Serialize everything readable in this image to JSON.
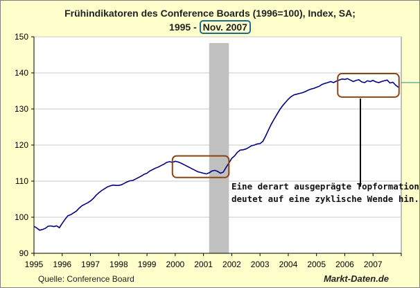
{
  "title": {
    "line1": "Frühindikatoren des Conference Boards (1996=100), Index, SA;",
    "line2_prefix": "1995 - ",
    "line2_highlight": "Nov. 2007"
  },
  "annotation": {
    "line1": "Eine derart ausgeprägte Topformation",
    "line2": "deutet auf eine zyklische Wende hin."
  },
  "footer": {
    "source": "Quelle: Conference Board",
    "brand": "Markt-Daten.de"
  },
  "colors": {
    "background": "#FFFFCC",
    "plot_area": "#FFFFFF",
    "line": "#000080",
    "recession_band": "#C0C0C0",
    "highlight_box": "#8B4513",
    "title_box": "#1A6D8C"
  },
  "chart_data": {
    "type": "line",
    "title": "Frühindikatoren des Conference Boards (1996=100), Index, SA; 1995 - Nov. 2007",
    "xlabel": "",
    "ylabel": "",
    "x_ticks": [
      "1995",
      "1996",
      "1997",
      "1998",
      "1999",
      "2000",
      "2001",
      "2002",
      "2003",
      "2004",
      "2005",
      "2006",
      "2007"
    ],
    "y_ticks": [
      90,
      100,
      110,
      120,
      130,
      140,
      150
    ],
    "xlim": [
      1995.0,
      2008.0
    ],
    "ylim": [
      90,
      150
    ],
    "grid": "horizontal",
    "recession_shading": [
      2001.2,
      2001.9
    ],
    "highlights": [
      {
        "x": [
          1999.9,
          2001.9
        ],
        "y": [
          111,
          117
        ]
      },
      {
        "x": [
          2005.75,
          2007.92
        ],
        "y": [
          133.3,
          139.8
        ]
      }
    ],
    "series": [
      {
        "values_x": [
          1995.0,
          1995.1,
          1995.2,
          1995.3,
          1995.4,
          1995.5,
          1995.6,
          1995.7,
          1995.8,
          1995.9,
          1996.0,
          1996.1,
          1996.2,
          1996.3,
          1996.4,
          1996.5,
          1996.6,
          1996.7,
          1996.8,
          1996.9,
          1997.0,
          1997.1,
          1997.2,
          1997.3,
          1997.4,
          1997.5,
          1997.6,
          1997.7,
          1997.8,
          1997.9,
          1998.0,
          1998.1,
          1998.2,
          1998.3,
          1998.4,
          1998.5,
          1998.6,
          1998.7,
          1998.8,
          1998.9,
          1999.0,
          1999.1,
          1999.2,
          1999.3,
          1999.4,
          1999.5,
          1999.6,
          1999.7,
          1999.8,
          1999.9,
          2000.0,
          2000.1,
          2000.2,
          2000.3,
          2000.4,
          2000.5,
          2000.6,
          2000.7,
          2000.8,
          2000.9,
          2001.0,
          2001.1,
          2001.2,
          2001.3,
          2001.4,
          2001.5,
          2001.6,
          2001.7,
          2001.8,
          2001.9,
          2002.0,
          2002.1,
          2002.2,
          2002.3,
          2002.4,
          2002.5,
          2002.6,
          2002.7,
          2002.8,
          2002.9,
          2003.0,
          2003.1,
          2003.2,
          2003.3,
          2003.4,
          2003.5,
          2003.6,
          2003.7,
          2003.8,
          2003.9,
          2004.0,
          2004.1,
          2004.2,
          2004.3,
          2004.4,
          2004.5,
          2004.6,
          2004.7,
          2004.8,
          2004.9,
          2005.0,
          2005.1,
          2005.2,
          2005.3,
          2005.4,
          2005.5,
          2005.6,
          2005.7,
          2005.8,
          2005.9,
          2006.0,
          2006.1,
          2006.2,
          2006.3,
          2006.4,
          2006.5,
          2006.6,
          2006.7,
          2006.8,
          2006.9,
          2007.0,
          2007.1,
          2007.2,
          2007.3,
          2007.4,
          2007.5,
          2007.6,
          2007.7,
          2007.8,
          2007.9
        ],
        "values": [
          97.5,
          97.0,
          96.4,
          96.6,
          96.9,
          97.5,
          97.6,
          97.4,
          97.6,
          97.1,
          98.3,
          99.4,
          100.4,
          100.7,
          101.2,
          101.7,
          102.5,
          103.2,
          103.6,
          104.0,
          104.5,
          105.2,
          106.1,
          106.8,
          107.4,
          107.9,
          108.4,
          108.7,
          108.9,
          108.8,
          108.8,
          109.0,
          109.4,
          109.8,
          110.1,
          110.2,
          110.6,
          111.0,
          111.4,
          111.9,
          112.2,
          112.8,
          113.2,
          113.6,
          113.9,
          114.3,
          114.7,
          115.2,
          115.4,
          115.2,
          115.5,
          115.3,
          115.0,
          114.6,
          114.2,
          113.8,
          113.4,
          113.0,
          112.6,
          112.4,
          112.2,
          112.0,
          112.3,
          112.8,
          113.0,
          112.7,
          112.2,
          112.5,
          113.8,
          115.0,
          116.3,
          117.0,
          118.0,
          118.6,
          118.7,
          118.9,
          119.3,
          119.8,
          120.0,
          120.3,
          120.4,
          121.0,
          122.5,
          124.2,
          125.8,
          127.2,
          128.5,
          129.8,
          130.9,
          131.8,
          132.7,
          133.4,
          133.9,
          134.1,
          134.3,
          134.5,
          134.8,
          135.2,
          135.5,
          135.7,
          136.0,
          136.3,
          136.8,
          137.1,
          137.3,
          137.6,
          137.3,
          137.7,
          138.0,
          138.3,
          138.2,
          138.4,
          138.0,
          137.6,
          137.9,
          138.1,
          137.5,
          137.3,
          137.8,
          137.6,
          137.9,
          137.5,
          137.3,
          137.6,
          137.8,
          138.0,
          137.2,
          137.4,
          136.6,
          136.0
        ]
      }
    ]
  }
}
